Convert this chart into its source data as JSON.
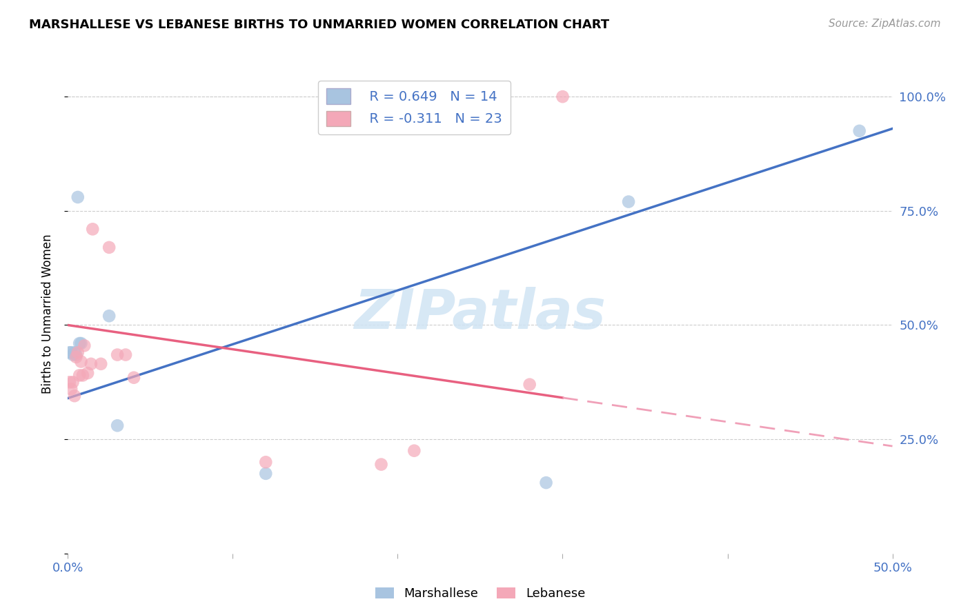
{
  "title": "MARSHALLESE VS LEBANESE BIRTHS TO UNMARRIED WOMEN CORRELATION CHART",
  "source": "Source: ZipAtlas.com",
  "ylabel": "Births to Unmarried Women",
  "right_yticks": [
    "100.0%",
    "75.0%",
    "50.0%",
    "25.0%"
  ],
  "right_ytick_vals": [
    1.0,
    0.75,
    0.5,
    0.25
  ],
  "legend1_r": "R = 0.649",
  "legend1_n": "N = 14",
  "legend2_r": "R = -0.311",
  "legend2_n": "N = 23",
  "marshallese_color": "#A8C4E0",
  "lebanese_color": "#F4A8B8",
  "blue_line_color": "#4472C4",
  "pink_line_color": "#E86080",
  "pink_dash_color": "#F0A0B8",
  "marshallese_x": [
    0.001,
    0.002,
    0.003,
    0.004,
    0.005,
    0.006,
    0.007,
    0.008,
    0.025,
    0.03,
    0.12,
    0.29,
    0.34,
    0.48
  ],
  "marshallese_y": [
    0.44,
    0.44,
    0.435,
    0.44,
    0.435,
    0.78,
    0.46,
    0.46,
    0.52,
    0.28,
    0.175,
    0.155,
    0.77,
    0.925
  ],
  "lebanese_x": [
    0.001,
    0.002,
    0.003,
    0.004,
    0.005,
    0.006,
    0.007,
    0.008,
    0.009,
    0.01,
    0.012,
    0.014,
    0.015,
    0.02,
    0.025,
    0.03,
    0.035,
    0.04,
    0.12,
    0.19,
    0.21,
    0.28,
    0.3
  ],
  "lebanese_y": [
    0.375,
    0.36,
    0.375,
    0.345,
    0.43,
    0.44,
    0.39,
    0.42,
    0.39,
    0.455,
    0.395,
    0.415,
    0.71,
    0.415,
    0.67,
    0.435,
    0.435,
    0.385,
    0.2,
    0.195,
    0.225,
    0.37,
    1.0
  ],
  "xlim": [
    0.0,
    0.5
  ],
  "ylim": [
    0.0,
    1.05
  ],
  "blue_line_x0": 0.0,
  "blue_line_y0": 0.34,
  "blue_line_x1": 0.5,
  "blue_line_y1": 0.93,
  "pink_line_x0": 0.0,
  "pink_line_y0": 0.5,
  "pink_line_x1": 0.5,
  "pink_line_y1": 0.235,
  "pink_solid_cutoff": 0.3
}
